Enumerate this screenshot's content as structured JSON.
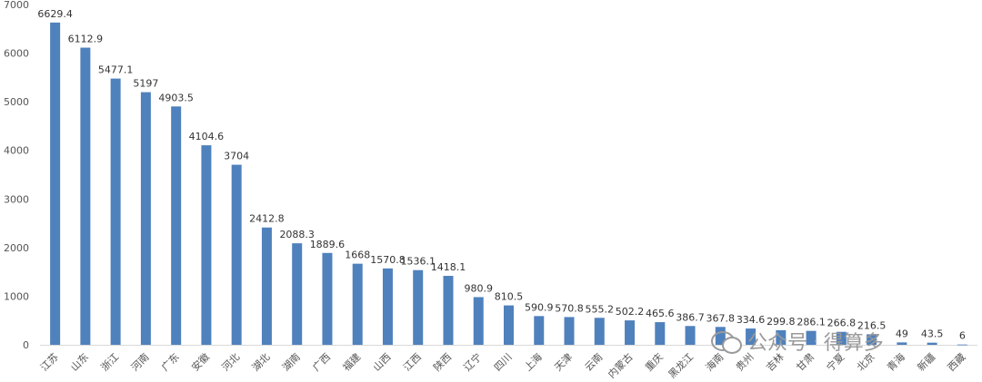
{
  "chart_data": {
    "type": "bar",
    "title": "",
    "xlabel": "",
    "ylabel": "",
    "ylim": [
      0,
      7000
    ],
    "yticks": [
      0,
      1000,
      2000,
      3000,
      4000,
      5000,
      6000,
      7000
    ],
    "grid": false,
    "legend": "none",
    "bar_color": "#4f81bd",
    "categories": [
      "江苏",
      "山东",
      "浙江",
      "河南",
      "广东",
      "安徽",
      "河北",
      "湖北",
      "湖南",
      "广西",
      "福建",
      "山西",
      "江西",
      "陕西",
      "辽宁",
      "四川",
      "上海",
      "天津",
      "云南",
      "内蒙古",
      "重庆",
      "黑龙江",
      "海南",
      "贵州",
      "吉林",
      "甘肃",
      "宁夏",
      "北京",
      "青海",
      "新疆",
      "西藏"
    ],
    "values": [
      6629.4,
      6112.9,
      5477.1,
      5197,
      4903.5,
      4104.6,
      3704,
      2412.8,
      2088.3,
      1889.6,
      1668,
      1570.8,
      1536.1,
      1418.1,
      980.9,
      810.5,
      590.9,
      570.8,
      555.2,
      502.2,
      465.6,
      386.7,
      367.8,
      334.6,
      299.8,
      286.1,
      266.8,
      216.5,
      49,
      43.5,
      6
    ],
    "labels": [
      "6629.4",
      "6112.9",
      "5477.1",
      "5197",
      "4903.5",
      "4104.6",
      "3704",
      "2412.8",
      "2088.3",
      "1889.6",
      "1668",
      "1570.8",
      "1536.1",
      "1418.1",
      "980.9",
      "810.5",
      "590.9",
      "570.8",
      "555.2",
      "502.2",
      "465.6",
      "386.7",
      "367.8",
      "334.6",
      "299.8",
      "286.1",
      "266.8",
      "216.5",
      "49",
      "43.5",
      "6"
    ]
  },
  "watermark": {
    "text": "公众号",
    "separator": "·",
    "name": "得算多",
    "icon": "chat-bubbles-icon"
  }
}
